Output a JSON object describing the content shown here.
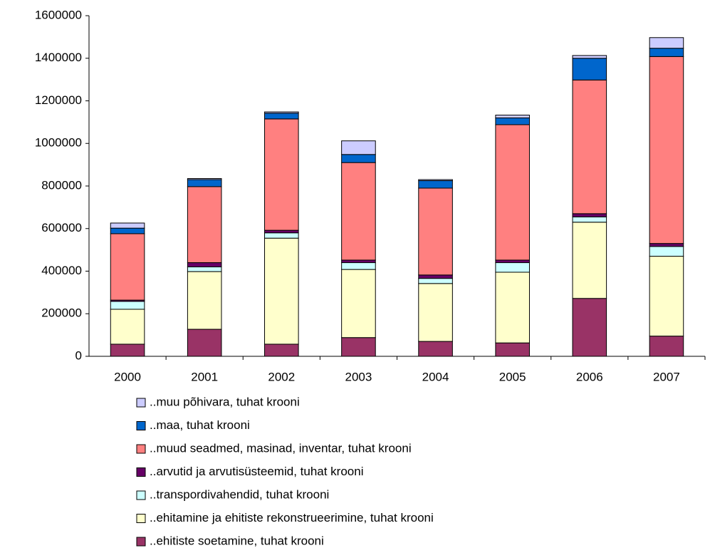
{
  "chart_data": {
    "type": "stacked_bar",
    "categories": [
      "2000",
      "2001",
      "2002",
      "2003",
      "2004",
      "2005",
      "2006",
      "2007"
    ],
    "series": [
      {
        "name": "..ehitiste soetamine, tuhat krooni",
        "color": "#993366",
        "values": [
          57000,
          127000,
          57000,
          88000,
          70000,
          63000,
          272000,
          95000
        ]
      },
      {
        "name": "..ehitamine ja ehitiste rekonstrueerimine, tuhat krooni",
        "color": "#ffffcc",
        "values": [
          164000,
          271000,
          498000,
          320000,
          272000,
          332000,
          358000,
          375000
        ]
      },
      {
        "name": "..transpordivahendid, tuhat krooni",
        "color": "#ccffff",
        "values": [
          37000,
          22000,
          25000,
          32000,
          24000,
          45000,
          25000,
          46000
        ]
      },
      {
        "name": "..arvutid ja arvutisüsteemid, tuhat krooni",
        "color": "#660066",
        "values": [
          6000,
          20000,
          12000,
          12000,
          16000,
          12000,
          15000,
          14000
        ]
      },
      {
        "name": "..muud seadmed, masinad, inventar, tuhat krooni",
        "color": "#ff8080",
        "values": [
          312000,
          357000,
          523000,
          458000,
          408000,
          636000,
          628000,
          878000
        ]
      },
      {
        "name": "..maa, tuhat krooni",
        "color": "#0066cc",
        "values": [
          26000,
          33000,
          27000,
          38000,
          35000,
          32000,
          102000,
          39000
        ]
      },
      {
        "name": "..muu põhivara, tuhat krooni",
        "color": "#ccccff",
        "values": [
          24000,
          5000,
          6000,
          64000,
          5000,
          13000,
          13000,
          50000
        ]
      }
    ],
    "ylim": [
      0,
      1600000
    ],
    "yticks": [
      0,
      200000,
      400000,
      600000,
      800000,
      1000000,
      1200000,
      1400000,
      1600000
    ],
    "grid": false
  }
}
